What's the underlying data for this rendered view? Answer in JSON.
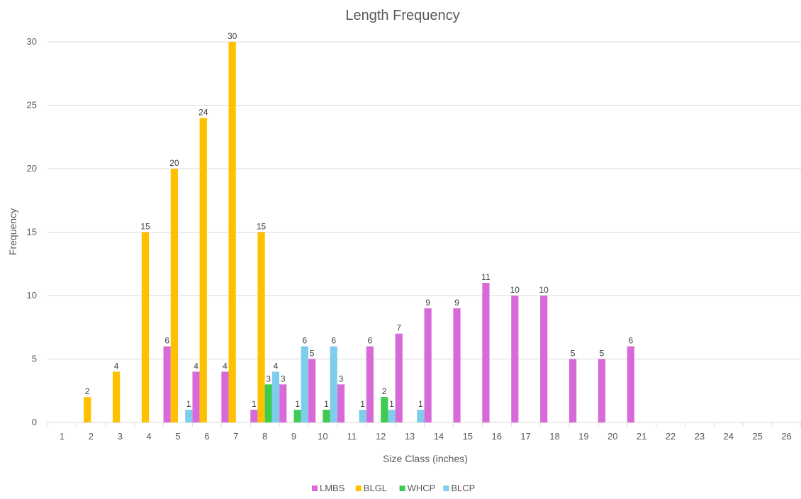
{
  "chart_data": {
    "type": "bar",
    "title": "Length Frequency",
    "xlabel": "Size Class (inches)",
    "ylabel": "Frequency",
    "categories": [
      "1",
      "2",
      "3",
      "4",
      "5",
      "6",
      "7",
      "8",
      "9",
      "10",
      "11",
      "12",
      "13",
      "14",
      "15",
      "16",
      "17",
      "18",
      "19",
      "20",
      "21",
      "22",
      "23",
      "24",
      "25",
      "26"
    ],
    "ylim": [
      0,
      30
    ],
    "yticks": [
      0,
      5,
      10,
      15,
      20,
      25,
      30
    ],
    "grid": true,
    "legend_position": "bottom",
    "series": [
      {
        "name": "LMBS",
        "color": "#d86ad8",
        "values": [
          0,
          0,
          0,
          0,
          6,
          4,
          4,
          1,
          3,
          5,
          3,
          6,
          7,
          9,
          9,
          11,
          10,
          10,
          5,
          5,
          6,
          0,
          0,
          0,
          0,
          0
        ]
      },
      {
        "name": "BLGL",
        "color": "#ffc000",
        "values": [
          0,
          2,
          4,
          15,
          20,
          24,
          30,
          15,
          0,
          0,
          0,
          0,
          0,
          0,
          0,
          0,
          0,
          0,
          0,
          0,
          0,
          0,
          0,
          0,
          0,
          0
        ]
      },
      {
        "name": "WHCP",
        "color": "#3ccc52",
        "values": [
          0,
          0,
          0,
          0,
          0,
          0,
          0,
          3,
          1,
          1,
          0,
          2,
          0,
          0,
          0,
          0,
          0,
          0,
          0,
          0,
          0,
          0,
          0,
          0,
          0,
          0
        ]
      },
      {
        "name": "BLCP",
        "color": "#7fcdec",
        "values": [
          0,
          0,
          0,
          0,
          1,
          0,
          0,
          4,
          6,
          6,
          1,
          1,
          1,
          0,
          0,
          0,
          0,
          0,
          0,
          0,
          0,
          0,
          0,
          0,
          0,
          0
        ]
      }
    ]
  }
}
